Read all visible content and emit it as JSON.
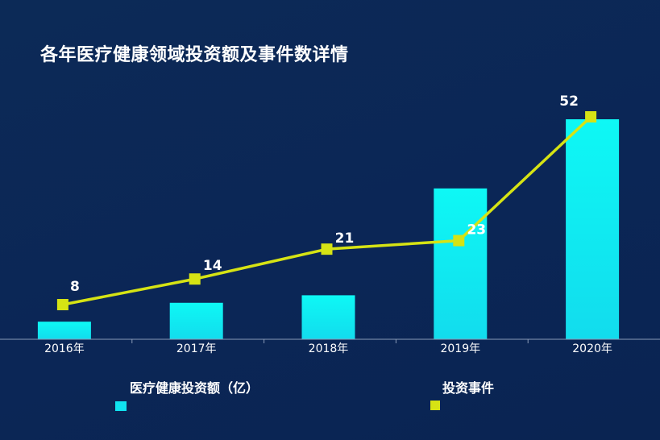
{
  "page": {
    "title": "各年医疗健康领域投资额及事件数详情"
  },
  "chart_data": {
    "type": "bar",
    "title": "各年医疗健康领域投资额及事件数详情",
    "categories": [
      "2016年",
      "2017年",
      "2018年",
      "2019年",
      "2020年"
    ],
    "series": [
      {
        "name": "医疗健康投资额（亿）",
        "type": "bar",
        "values": [
          14,
          29,
          35,
          120,
          175
        ],
        "color": "#0ef5f2"
      },
      {
        "name": "投资事件",
        "type": "line",
        "values": [
          8,
          14,
          21,
          23,
          52
        ],
        "data_labels": [
          "8",
          "14",
          "21",
          "23",
          "52"
        ],
        "color": "#d6e314"
      }
    ],
    "bar_ylim": [
      0,
      180
    ],
    "line_ylim": [
      0,
      54
    ],
    "grid": false,
    "legend_position": "bottom"
  }
}
